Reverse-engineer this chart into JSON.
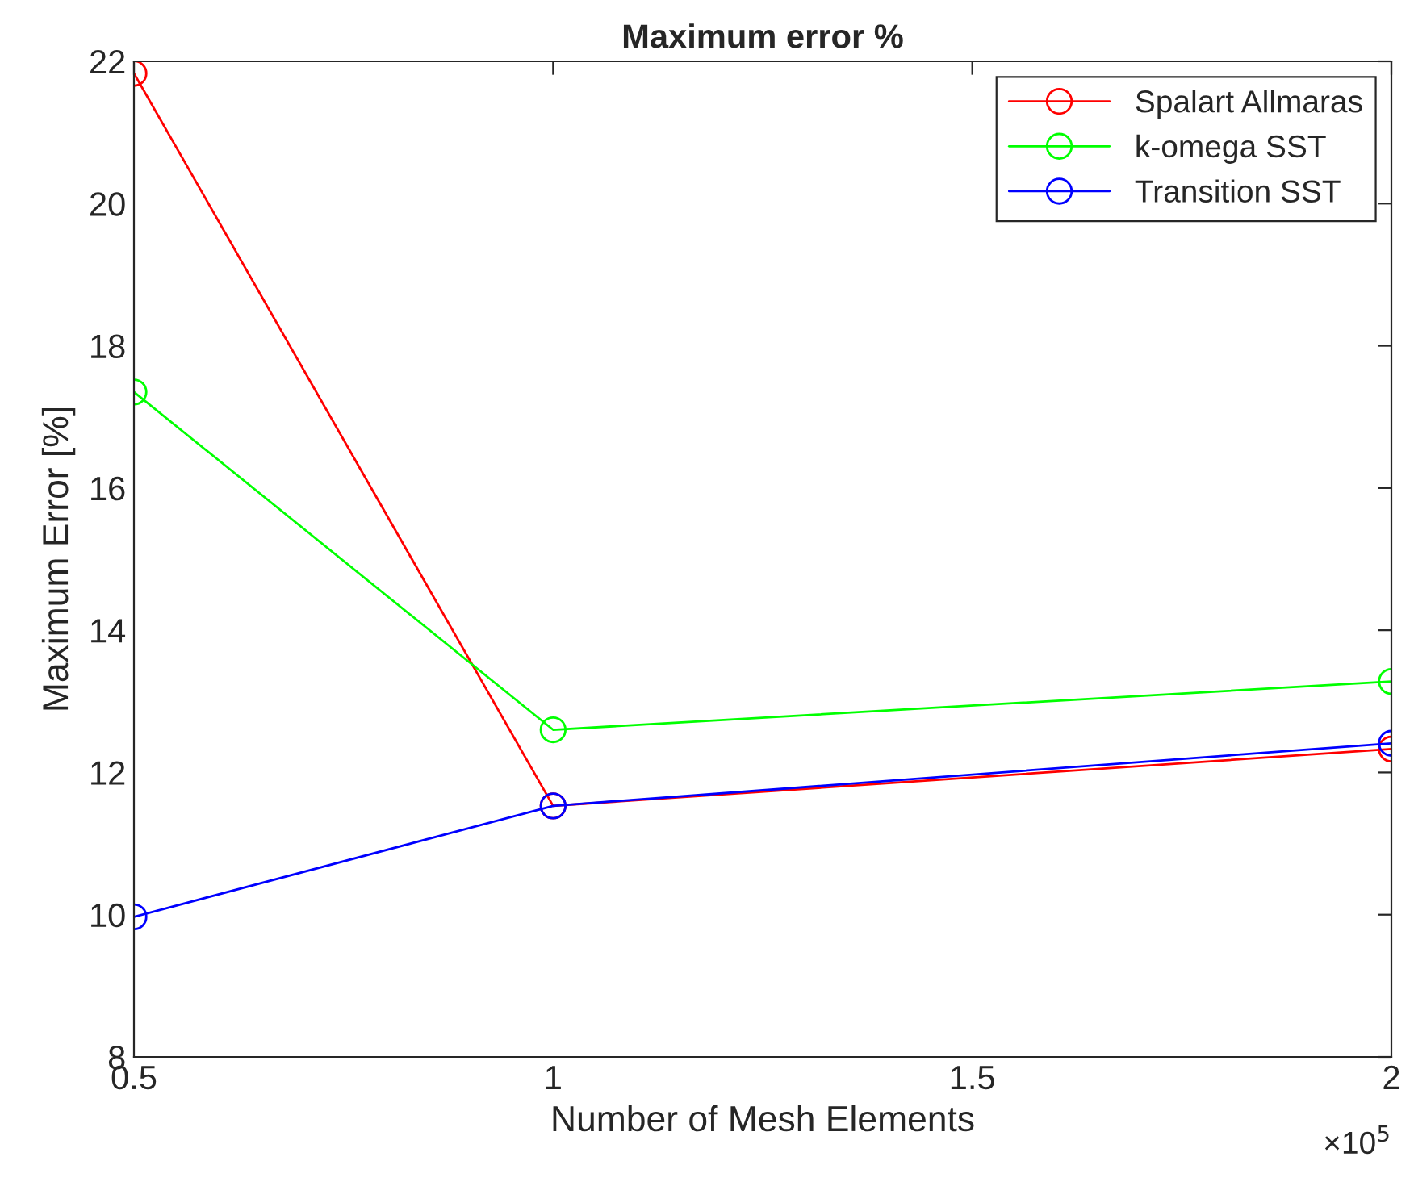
{
  "chart_data": {
    "type": "line",
    "title": "Maximum error %",
    "xlabel": "Number of Mesh Elements",
    "ylabel": "Maximum Error [%]",
    "x": [
      0.5,
      1,
      2
    ],
    "series": [
      {
        "name": "Spalart Allmaras",
        "color": "#ff0000",
        "values": [
          21.83,
          11.53,
          12.33
        ]
      },
      {
        "name": "k-omega SST",
        "color": "#00ff00",
        "values": [
          17.35,
          12.6,
          13.28
        ]
      },
      {
        "name": "Transition SST",
        "color": "#0000ff",
        "values": [
          9.97,
          11.53,
          12.41
        ]
      }
    ],
    "xlim": [
      0.5,
      2
    ],
    "xticks": [
      0.5,
      1,
      1.5,
      2
    ],
    "ylim": [
      8,
      22
    ],
    "yticks": [
      8,
      10,
      12,
      14,
      16,
      18,
      20,
      22
    ],
    "annotations": [
      "×10$^{5}$"
    ],
    "marker": "circle",
    "line_style": "solid",
    "legend": "top right",
    "grid": false
  }
}
